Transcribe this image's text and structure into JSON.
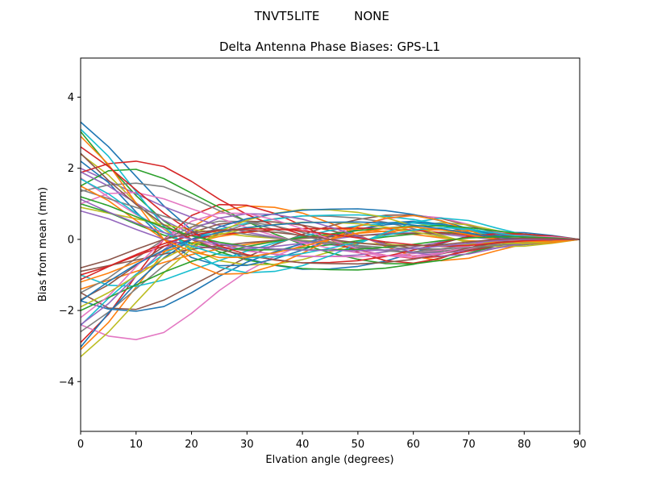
{
  "figure": {
    "suptitle": {
      "left": "TNVT5LITE",
      "right": "NONE"
    },
    "background": "#ffffff"
  },
  "chart_data": {
    "type": "line",
    "title": "Delta Antenna Phase Biases: GPS-L1",
    "suptitle_left": "TNVT5LITE",
    "suptitle_right": "NONE",
    "xlabel": "Elvation angle (degrees)",
    "ylabel": "Bias from mean (mm)",
    "xlim": [
      0,
      90
    ],
    "ylim": [
      -5.4,
      5.1
    ],
    "xticks": [
      0,
      10,
      20,
      30,
      40,
      50,
      60,
      70,
      80,
      90
    ],
    "yticks": [
      -4,
      -2,
      0,
      2,
      4
    ],
    "grid": false,
    "legend": "none",
    "frame_color": "#000000",
    "line_width": 1.6,
    "palette": [
      "#1f77b4",
      "#ff7f0e",
      "#2ca02c",
      "#d62728",
      "#9467bd",
      "#8c564b",
      "#e377c2",
      "#7f7f7f",
      "#bcbd22",
      "#17becf"
    ],
    "x": [
      0,
      5,
      10,
      15,
      20,
      25,
      30,
      35,
      40,
      45,
      50,
      55,
      60,
      65,
      70,
      75,
      80,
      85,
      90
    ],
    "series": [
      {
        "values": [
          3.3,
          2.61,
          1.77,
          0.94,
          0.26,
          -0.22,
          -0.54,
          -0.73,
          -0.84,
          -0.83,
          -0.76,
          -0.61,
          -0.38,
          -0.12,
          0.1,
          0.2,
          0.19,
          0.11,
          0.0
        ]
      },
      {
        "values": [
          -3.1,
          -2.34,
          -1.34,
          -0.37,
          0.34,
          0.78,
          0.94,
          0.9,
          0.74,
          0.46,
          0.13,
          -0.2,
          -0.48,
          -0.6,
          -0.53,
          -0.32,
          -0.13,
          -0.02,
          0.0
        ]
      },
      {
        "values": [
          3.03,
          2.08,
          1.23,
          0.52,
          0.0,
          -0.35,
          -0.58,
          -0.72,
          -0.82,
          -0.85,
          -0.86,
          -0.81,
          -0.7,
          -0.52,
          -0.3,
          -0.11,
          0.0,
          0.03,
          0.0
        ]
      },
      {
        "values": [
          -2.9,
          -2.11,
          -1.02,
          0.0,
          0.67,
          0.98,
          0.96,
          0.73,
          0.39,
          0.0,
          -0.36,
          -0.6,
          -0.67,
          -0.53,
          -0.25,
          0.0,
          0.11,
          0.09,
          0.0
        ]
      },
      {
        "values": [
          2.0,
          1.64,
          1.28,
          0.92,
          0.62,
          0.39,
          0.2,
          0.06,
          -0.06,
          -0.15,
          -0.25,
          -0.32,
          -0.37,
          -0.38,
          -0.33,
          -0.24,
          -0.15,
          -0.06,
          0.0
        ]
      },
      {
        "values": [
          -1.5,
          -1.93,
          -1.97,
          -1.71,
          -1.3,
          -0.9,
          -0.5,
          -0.15,
          0.14,
          0.38,
          0.56,
          0.68,
          0.69,
          0.59,
          0.39,
          0.18,
          0.04,
          -0.02,
          0.0
        ]
      },
      {
        "values": [
          -2.4,
          -2.72,
          -2.82,
          -2.62,
          -2.08,
          -1.44,
          -0.9,
          -0.48,
          -0.16,
          0.13,
          0.38,
          0.58,
          0.67,
          0.61,
          0.42,
          0.22,
          0.1,
          0.03,
          0.0
        ]
      },
      {
        "values": [
          -2.6,
          -2.05,
          -1.39,
          -0.74,
          -0.21,
          0.18,
          0.43,
          0.58,
          0.66,
          0.65,
          0.6,
          0.48,
          0.3,
          0.1,
          -0.08,
          -0.16,
          -0.15,
          -0.09,
          0.0
        ]
      },
      {
        "values": [
          2.4,
          1.81,
          1.03,
          0.29,
          -0.27,
          -0.6,
          -0.72,
          -0.7,
          -0.57,
          -0.35,
          -0.1,
          0.16,
          0.37,
          0.47,
          0.41,
          0.25,
          0.1,
          0.01,
          0.0
        ]
      },
      {
        "values": [
          -2.42,
          -1.66,
          -0.98,
          -0.41,
          0.0,
          0.28,
          0.46,
          0.57,
          0.66,
          0.68,
          0.69,
          0.65,
          0.56,
          0.41,
          0.24,
          0.09,
          0.0,
          -0.03,
          0.0
        ]
      },
      {
        "values": [
          2.2,
          1.6,
          0.77,
          0.0,
          -0.51,
          -0.74,
          -0.73,
          -0.55,
          -0.3,
          0.0,
          0.27,
          0.46,
          0.51,
          0.4,
          0.19,
          0.0,
          -0.08,
          -0.07,
          0.0
        ]
      },
      {
        "values": [
          -1.4,
          -1.15,
          -0.9,
          -0.65,
          -0.43,
          -0.27,
          -0.14,
          -0.04,
          0.04,
          0.11,
          0.17,
          0.23,
          0.26,
          0.27,
          0.23,
          0.17,
          0.1,
          0.04,
          0.0
        ]
      },
      {
        "values": [
          1.5,
          1.93,
          1.97,
          1.71,
          1.3,
          0.9,
          0.5,
          0.15,
          -0.14,
          -0.38,
          -0.56,
          -0.68,
          -0.69,
          -0.59,
          -0.39,
          -0.18,
          -0.04,
          0.02,
          0.0
        ]
      },
      {
        "values": [
          1.88,
          2.13,
          2.2,
          2.05,
          1.63,
          1.13,
          0.7,
          0.38,
          0.13,
          -0.1,
          -0.3,
          -0.45,
          -0.53,
          -0.48,
          -0.33,
          -0.18,
          -0.08,
          -0.03,
          0.0
        ]
      },
      {
        "values": [
          1.9,
          1.5,
          1.02,
          0.54,
          0.15,
          -0.13,
          -0.31,
          -0.42,
          -0.48,
          -0.48,
          -0.44,
          -0.35,
          -0.22,
          -0.07,
          0.06,
          0.11,
          0.11,
          0.06,
          0.0
        ]
      },
      {
        "values": [
          -1.7,
          -1.28,
          -0.73,
          -0.2,
          0.19,
          0.43,
          0.51,
          0.49,
          0.4,
          0.25,
          0.07,
          -0.11,
          -0.26,
          -0.33,
          -0.29,
          -0.18,
          -0.07,
          -0.01,
          0.0
        ]
      },
      {
        "values": [
          1.73,
          1.19,
          0.7,
          0.3,
          0.0,
          -0.2,
          -0.33,
          -0.41,
          -0.47,
          -0.48,
          -0.49,
          -0.46,
          -0.4,
          -0.3,
          -0.17,
          -0.06,
          0.0,
          0.02,
          0.0
        ]
      },
      {
        "values": [
          -1.5,
          -1.09,
          -0.53,
          0.0,
          0.35,
          0.51,
          0.5,
          0.38,
          0.2,
          0.0,
          -0.18,
          -0.31,
          -0.35,
          -0.27,
          -0.13,
          0.0,
          0.06,
          0.05,
          0.0
        ]
      },
      {
        "values": [
          0.9,
          0.74,
          0.58,
          0.41,
          0.28,
          0.18,
          0.09,
          0.03,
          -0.03,
          -0.07,
          -0.11,
          -0.14,
          -0.17,
          -0.17,
          -0.15,
          -0.11,
          -0.07,
          -0.03,
          0.0
        ]
      },
      {
        "values": [
          -1.0,
          -1.29,
          -1.32,
          -1.14,
          -0.86,
          -0.6,
          -0.33,
          -0.1,
          0.09,
          0.25,
          0.38,
          0.45,
          0.46,
          0.39,
          0.26,
          0.12,
          0.03,
          -0.01,
          0.0
        ]
      },
      {
        "values": [
          -1.73,
          -1.96,
          -2.02,
          -1.89,
          -1.5,
          -1.04,
          -0.64,
          -0.35,
          -0.12,
          0.09,
          0.28,
          0.41,
          0.48,
          0.44,
          0.3,
          0.16,
          0.07,
          0.02,
          0.0
        ]
      },
      {
        "values": [
          -1.2,
          -0.95,
          -0.64,
          -0.34,
          -0.1,
          0.08,
          0.2,
          0.27,
          0.3,
          0.3,
          0.28,
          0.22,
          0.14,
          0.04,
          -0.04,
          -0.07,
          -0.07,
          -0.04,
          0.0
        ]
      },
      {
        "values": [
          1.0,
          0.76,
          0.43,
          0.12,
          -0.11,
          -0.25,
          -0.3,
          -0.29,
          -0.24,
          -0.15,
          -0.04,
          0.07,
          0.15,
          0.2,
          0.17,
          0.1,
          0.04,
          0.01,
          0.0
        ]
      },
      {
        "values": [
          -1.13,
          -0.77,
          -0.46,
          -0.19,
          0.0,
          0.13,
          0.21,
          0.27,
          0.3,
          0.31,
          0.32,
          0.3,
          0.26,
          0.19,
          0.11,
          0.04,
          0.0,
          -0.01,
          0.0
        ]
      },
      {
        "values": [
          0.8,
          0.58,
          0.28,
          0.0,
          -0.18,
          -0.27,
          -0.26,
          -0.2,
          -0.11,
          0.0,
          0.1,
          0.17,
          0.18,
          0.15,
          0.07,
          0.0,
          -0.03,
          -0.02,
          0.0
        ]
      },
      {
        "values": [
          -0.9,
          -0.74,
          -0.58,
          -0.41,
          -0.28,
          -0.18,
          -0.09,
          -0.03,
          0.03,
          0.07,
          0.11,
          0.14,
          0.17,
          0.17,
          0.15,
          0.11,
          0.07,
          0.03,
          0.0
        ]
      },
      {
        "values": [
          1.0,
          1.29,
          1.32,
          1.14,
          0.86,
          0.6,
          0.33,
          0.1,
          -0.09,
          -0.25,
          -0.38,
          -0.45,
          -0.46,
          -0.39,
          -0.26,
          -0.12,
          -0.03,
          0.01,
          0.0
        ]
      },
      {
        "values": [
          1.35,
          1.53,
          1.58,
          1.48,
          1.17,
          0.81,
          0.5,
          0.27,
          0.09,
          -0.07,
          -0.22,
          -0.32,
          -0.38,
          -0.34,
          -0.23,
          -0.13,
          -0.05,
          -0.02,
          0.0
        ]
      },
      {
        "values": [
          -3.3,
          -2.61,
          -1.77,
          -0.94,
          -0.26,
          0.22,
          0.54,
          0.73,
          0.84,
          0.83,
          0.76,
          0.61,
          0.38,
          0.12,
          -0.1,
          -0.2,
          -0.19,
          -0.11,
          0.0
        ]
      },
      {
        "values": [
          3.1,
          2.34,
          1.34,
          0.37,
          -0.34,
          -0.78,
          -0.94,
          -0.9,
          -0.74,
          -0.46,
          -0.13,
          0.2,
          0.48,
          0.6,
          0.53,
          0.32,
          0.13,
          0.02,
          0.0
        ]
      },
      {
        "values": [
          -3.03,
          -2.08,
          -1.23,
          -0.52,
          0.0,
          0.35,
          0.58,
          0.72,
          0.82,
          0.85,
          0.86,
          0.81,
          0.7,
          0.52,
          0.3,
          0.11,
          0.0,
          -0.03,
          0.0
        ]
      },
      {
        "values": [
          2.9,
          2.11,
          1.02,
          0.0,
          -0.67,
          -0.98,
          -0.96,
          -0.73,
          -0.39,
          0.0,
          0.36,
          0.6,
          0.67,
          0.53,
          0.25,
          0.0,
          -0.11,
          -0.09,
          0.0
        ]
      },
      {
        "values": [
          -2.0,
          -1.64,
          -1.28,
          -0.92,
          -0.62,
          -0.39,
          -0.2,
          -0.06,
          0.06,
          0.15,
          0.25,
          0.32,
          0.37,
          0.38,
          0.33,
          0.24,
          0.15,
          0.06,
          0.0
        ]
      },
      {
        "values": [
          2.6,
          2.05,
          1.39,
          0.74,
          0.21,
          -0.18,
          -0.43,
          -0.58,
          -0.66,
          -0.65,
          -0.6,
          -0.48,
          -0.3,
          -0.1,
          0.08,
          0.16,
          0.15,
          0.09,
          0.0
        ]
      },
      {
        "values": [
          -2.4,
          -1.81,
          -1.03,
          -0.29,
          0.27,
          0.6,
          0.72,
          0.7,
          0.57,
          0.35,
          0.1,
          -0.16,
          -0.37,
          -0.47,
          -0.41,
          -0.25,
          -0.1,
          -0.01,
          0.0
        ]
      },
      {
        "values": [
          2.42,
          1.66,
          0.98,
          0.41,
          0.0,
          -0.28,
          -0.46,
          -0.57,
          -0.66,
          -0.68,
          -0.69,
          -0.65,
          -0.56,
          -0.41,
          -0.24,
          -0.09,
          0.0,
          0.03,
          0.0
        ]
      },
      {
        "values": [
          -2.2,
          -1.6,
          -0.77,
          0.0,
          0.51,
          0.74,
          0.73,
          0.55,
          0.3,
          0.0,
          -0.27,
          -0.46,
          -0.51,
          -0.4,
          -0.19,
          0.0,
          0.08,
          0.07,
          0.0
        ]
      },
      {
        "values": [
          1.4,
          1.15,
          0.9,
          0.65,
          0.43,
          0.27,
          0.14,
          0.04,
          -0.04,
          -0.11,
          -0.17,
          -0.23,
          -0.26,
          -0.27,
          -0.23,
          -0.17,
          -0.1,
          -0.04,
          0.0
        ]
      },
      {
        "values": [
          -1.9,
          -1.5,
          -1.02,
          -0.54,
          -0.15,
          0.13,
          0.31,
          0.42,
          0.48,
          0.48,
          0.44,
          0.35,
          0.22,
          0.07,
          -0.06,
          -0.11,
          -0.11,
          -0.06,
          0.0
        ]
      },
      {
        "values": [
          1.7,
          1.28,
          0.73,
          0.2,
          -0.19,
          -0.43,
          -0.51,
          -0.49,
          -0.4,
          -0.25,
          -0.07,
          0.11,
          0.26,
          0.33,
          0.29,
          0.18,
          0.07,
          0.01,
          0.0
        ]
      },
      {
        "values": [
          -1.73,
          -1.19,
          -0.7,
          -0.3,
          0.0,
          0.2,
          0.33,
          0.41,
          0.47,
          0.48,
          0.49,
          0.46,
          0.4,
          0.3,
          0.17,
          0.06,
          0.0,
          -0.02,
          0.0
        ]
      },
      {
        "values": [
          1.5,
          1.09,
          0.53,
          0.0,
          -0.35,
          -0.51,
          -0.5,
          -0.38,
          -0.2,
          0.0,
          0.18,
          0.31,
          0.35,
          0.27,
          0.13,
          0.0,
          -0.06,
          -0.05,
          0.0
        ]
      },
      {
        "values": [
          1.2,
          0.95,
          0.64,
          0.34,
          0.1,
          -0.08,
          -0.2,
          -0.27,
          -0.3,
          -0.3,
          -0.28,
          -0.22,
          -0.14,
          -0.04,
          0.04,
          0.07,
          0.07,
          0.04,
          0.0
        ]
      },
      {
        "values": [
          -1.0,
          -0.76,
          -0.43,
          -0.12,
          0.11,
          0.25,
          0.3,
          0.29,
          0.24,
          0.15,
          0.04,
          -0.07,
          -0.15,
          -0.2,
          -0.17,
          -0.1,
          -0.04,
          -0.01,
          0.0
        ]
      },
      {
        "values": [
          1.13,
          0.77,
          0.46,
          0.19,
          0.0,
          -0.13,
          -0.21,
          -0.27,
          -0.3,
          -0.31,
          -0.32,
          -0.3,
          -0.26,
          -0.19,
          -0.11,
          -0.04,
          0.0,
          0.01,
          0.0
        ]
      },
      {
        "values": [
          -0.8,
          -0.58,
          -0.28,
          0.0,
          0.18,
          0.27,
          0.26,
          0.2,
          0.11,
          0.0,
          -0.1,
          -0.17,
          -0.18,
          -0.15,
          -0.07,
          0.0,
          0.03,
          0.02,
          0.0
        ]
      }
    ]
  }
}
